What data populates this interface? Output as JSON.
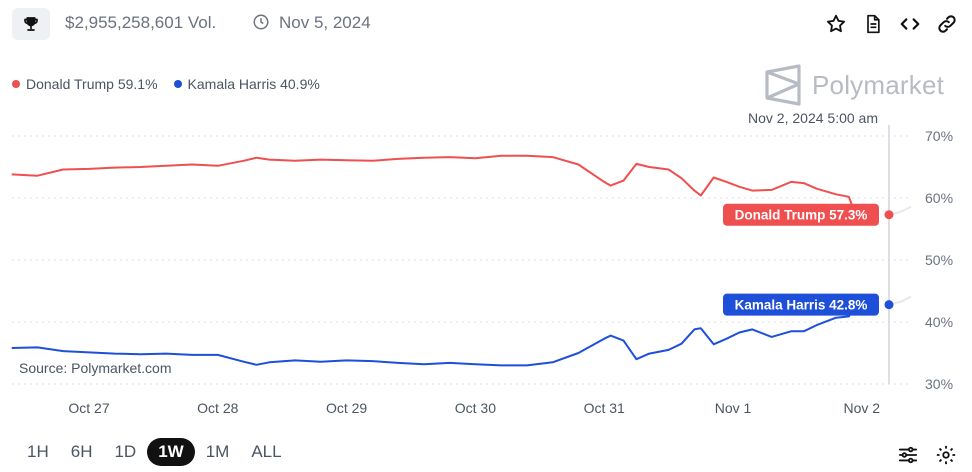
{
  "header": {
    "volume": "$2,955,258,601 Vol.",
    "date": "Nov 5, 2024",
    "icons": [
      "trophy-icon",
      "clock-icon",
      "star-icon",
      "document-icon",
      "embed-code-icon",
      "link-icon"
    ]
  },
  "legend": [
    {
      "label": "Donald Trump 59.1%",
      "color": "#ef4f4f"
    },
    {
      "label": "Kamala Harris 40.9%",
      "color": "#1e4fd8"
    }
  ],
  "brand": {
    "name": "Polymarket"
  },
  "source": "Source: Polymarket.com",
  "timeframes": [
    {
      "label": "1H",
      "active": false
    },
    {
      "label": "6H",
      "active": false
    },
    {
      "label": "1D",
      "active": false
    },
    {
      "label": "1W",
      "active": true
    },
    {
      "label": "1M",
      "active": false
    },
    {
      "label": "ALL",
      "active": false
    }
  ],
  "chart_data": {
    "type": "line",
    "hover_label": "Nov 2, 2024 5:00 am",
    "x_ticks": [
      "Oct 27",
      "Oct 28",
      "Oct 29",
      "Oct 30",
      "Oct 31",
      "Nov 1",
      "Nov 2"
    ],
    "y_ticks": [
      "70%",
      "60%",
      "50%",
      "40%",
      "30%"
    ],
    "ylim": [
      30,
      70
    ],
    "grid": true,
    "series": [
      {
        "name": "Donald Trump",
        "color": "#ef4f4f",
        "end_label": "Donald Trump 57.3%",
        "end_value": 57.3,
        "points": [
          [
            -0.6,
            63.8
          ],
          [
            -0.4,
            63.6
          ],
          [
            -0.2,
            64.6
          ],
          [
            0,
            64.7
          ],
          [
            0.2,
            64.9
          ],
          [
            0.4,
            65.0
          ],
          [
            0.6,
            65.2
          ],
          [
            0.8,
            65.4
          ],
          [
            1.0,
            65.2
          ],
          [
            1.2,
            66.0
          ],
          [
            1.3,
            66.5
          ],
          [
            1.4,
            66.2
          ],
          [
            1.6,
            66.0
          ],
          [
            1.8,
            66.2
          ],
          [
            2.0,
            66.1
          ],
          [
            2.2,
            66.0
          ],
          [
            2.4,
            66.3
          ],
          [
            2.6,
            66.5
          ],
          [
            2.8,
            66.6
          ],
          [
            3.0,
            66.4
          ],
          [
            3.2,
            66.8
          ],
          [
            3.4,
            66.8
          ],
          [
            3.6,
            66.6
          ],
          [
            3.8,
            65.4
          ],
          [
            4.0,
            62.6
          ],
          [
            4.05,
            62.0
          ],
          [
            4.15,
            62.8
          ],
          [
            4.25,
            65.5
          ],
          [
            4.35,
            65.0
          ],
          [
            4.5,
            64.6
          ],
          [
            4.6,
            63.2
          ],
          [
            4.7,
            61.2
          ],
          [
            4.75,
            60.4
          ],
          [
            4.85,
            63.3
          ],
          [
            4.95,
            62.6
          ],
          [
            5.05,
            61.8
          ],
          [
            5.15,
            61.2
          ],
          [
            5.3,
            61.3
          ],
          [
            5.45,
            62.6
          ],
          [
            5.55,
            62.4
          ],
          [
            5.65,
            61.5
          ],
          [
            5.8,
            60.6
          ],
          [
            5.9,
            60.2
          ],
          [
            5.95,
            57.3
          ]
        ]
      },
      {
        "name": "Kamala Harris",
        "color": "#1e4fd8",
        "end_label": "Kamala Harris 42.8%",
        "end_value": 42.8,
        "points": [
          [
            -0.6,
            35.8
          ],
          [
            -0.4,
            35.9
          ],
          [
            -0.2,
            35.3
          ],
          [
            0,
            35.1
          ],
          [
            0.2,
            34.9
          ],
          [
            0.4,
            34.8
          ],
          [
            0.6,
            34.9
          ],
          [
            0.8,
            34.7
          ],
          [
            1.0,
            34.7
          ],
          [
            1.2,
            33.6
          ],
          [
            1.3,
            33.1
          ],
          [
            1.4,
            33.5
          ],
          [
            1.6,
            33.8
          ],
          [
            1.8,
            33.6
          ],
          [
            2.0,
            33.8
          ],
          [
            2.2,
            33.7
          ],
          [
            2.4,
            33.4
          ],
          [
            2.6,
            33.2
          ],
          [
            2.8,
            33.4
          ],
          [
            3.0,
            33.2
          ],
          [
            3.2,
            33.0
          ],
          [
            3.4,
            33.0
          ],
          [
            3.6,
            33.5
          ],
          [
            3.8,
            35.0
          ],
          [
            4.0,
            37.3
          ],
          [
            4.05,
            37.8
          ],
          [
            4.15,
            37.0
          ],
          [
            4.25,
            34.0
          ],
          [
            4.35,
            34.9
          ],
          [
            4.5,
            35.5
          ],
          [
            4.6,
            36.5
          ],
          [
            4.7,
            38.8
          ],
          [
            4.75,
            39.0
          ],
          [
            4.85,
            36.4
          ],
          [
            4.95,
            37.3
          ],
          [
            5.05,
            38.3
          ],
          [
            5.15,
            38.8
          ],
          [
            5.3,
            37.6
          ],
          [
            5.45,
            38.5
          ],
          [
            5.55,
            38.5
          ],
          [
            5.65,
            39.5
          ],
          [
            5.8,
            40.7
          ],
          [
            5.9,
            40.9
          ],
          [
            5.95,
            42.8
          ]
        ]
      }
    ]
  }
}
